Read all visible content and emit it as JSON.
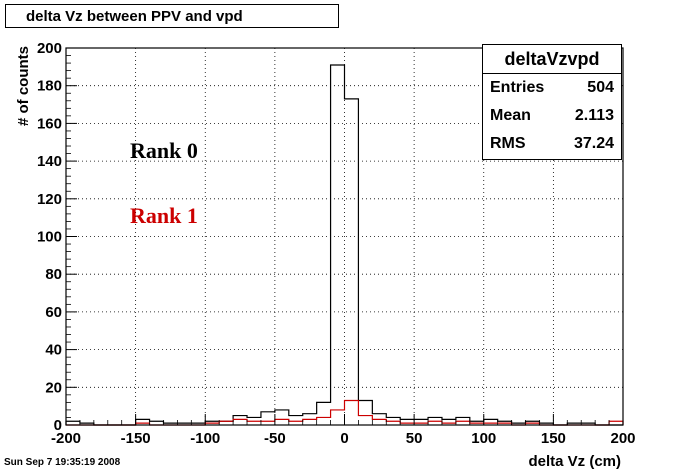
{
  "title": "delta Vz between PPV and vpd",
  "footer": "Sun Sep  7 19:35:19 2008",
  "stats": {
    "name": "deltaVzvpd",
    "rows": [
      {
        "label": "Entries",
        "value": "504"
      },
      {
        "label": "Mean",
        "value": "2.113"
      },
      {
        "label": "RMS",
        "value": "37.24"
      }
    ]
  },
  "chart_data": {
    "type": "bar",
    "title": "delta Vz between PPV and vpd",
    "xlabel": "delta Vz (cm)",
    "ylabel": "# of counts",
    "xlim": [
      -200,
      200
    ],
    "ylim": [
      0,
      200
    ],
    "xticks": [
      -200,
      -150,
      -100,
      -50,
      0,
      50,
      100,
      150,
      200
    ],
    "yticks": [
      0,
      20,
      40,
      60,
      80,
      100,
      120,
      140,
      160,
      180,
      200
    ],
    "grid": true,
    "bin_edges": [
      -200,
      -190,
      -180,
      -170,
      -160,
      -150,
      -140,
      -130,
      -120,
      -110,
      -100,
      -90,
      -80,
      -70,
      -60,
      -50,
      -40,
      -30,
      -20,
      -10,
      0,
      10,
      20,
      30,
      40,
      50,
      60,
      70,
      80,
      90,
      100,
      110,
      120,
      130,
      140,
      150,
      160,
      170,
      180,
      190,
      200
    ],
    "series": [
      {
        "name": "Rank 0",
        "color": "#000000",
        "values": [
          2,
          1,
          0,
          0,
          0,
          3,
          2,
          1,
          1,
          1,
          2,
          2,
          5,
          4,
          7,
          8,
          5,
          6,
          12,
          191,
          173,
          13,
          6,
          4,
          3,
          3,
          4,
          3,
          4,
          2,
          3,
          2,
          1,
          2,
          1,
          0,
          1,
          1,
          0,
          0
        ]
      },
      {
        "name": "Rank 1",
        "color": "#cc0000",
        "values": [
          0,
          0,
          0,
          0,
          0,
          1,
          0,
          0,
          0,
          0,
          1,
          2,
          3,
          2,
          2,
          3,
          2,
          3,
          4,
          8,
          13,
          5,
          3,
          2,
          1,
          1,
          2,
          1,
          2,
          1,
          1,
          1,
          0,
          1,
          0,
          0,
          0,
          0,
          0,
          2
        ]
      }
    ],
    "annotations": [
      {
        "text": "Rank 0",
        "color": "#000000"
      },
      {
        "text": "Rank 1",
        "color": "#cc0000"
      }
    ]
  }
}
